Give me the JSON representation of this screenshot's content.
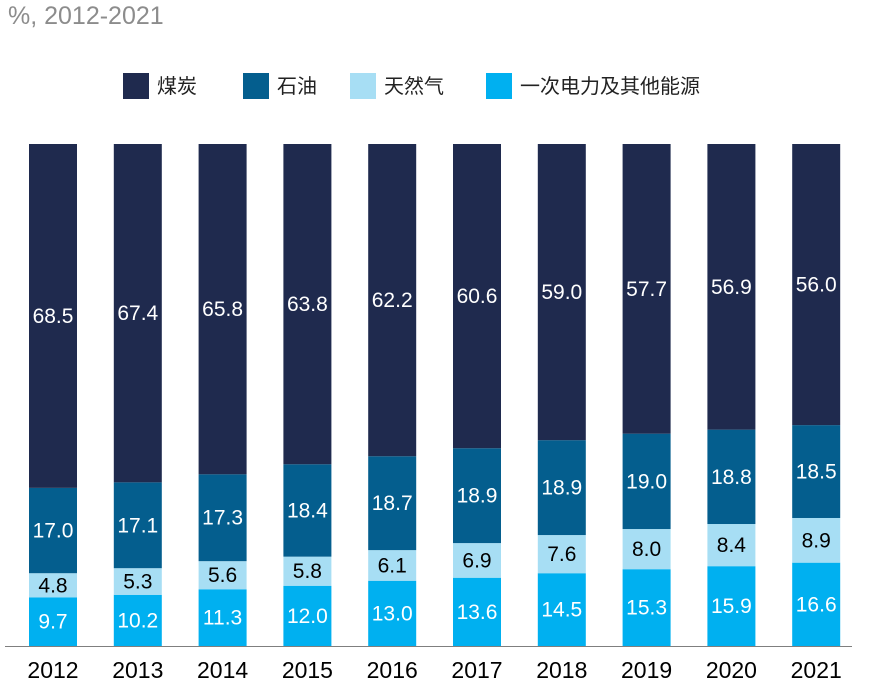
{
  "subtitle": "%, 2012-2021",
  "chart_data": {
    "type": "bar",
    "stacked": true,
    "categories": [
      "2012",
      "2013",
      "2014",
      "2015",
      "2016",
      "2017",
      "2018",
      "2019",
      "2020",
      "2021"
    ],
    "series": [
      {
        "name": "一次电力及其他能源",
        "color": "#00b0f0",
        "label_color": "#ffffff",
        "values": [
          9.7,
          10.2,
          11.3,
          12.0,
          13.0,
          13.6,
          14.5,
          15.3,
          15.9,
          16.6
        ]
      },
      {
        "name": "天然气",
        "color": "#a7def4",
        "label_color": "#000000",
        "values": [
          4.8,
          5.3,
          5.6,
          5.8,
          6.1,
          6.9,
          7.6,
          8.0,
          8.4,
          8.9
        ]
      },
      {
        "name": "石油",
        "color": "#045e8e",
        "label_color": "#ffffff",
        "values": [
          17.0,
          17.1,
          17.3,
          18.4,
          18.7,
          18.9,
          18.9,
          19.0,
          18.8,
          18.5
        ]
      },
      {
        "name": "煤炭",
        "color": "#1f2a4e",
        "label_color": "#ffffff",
        "values": [
          68.5,
          67.4,
          65.8,
          63.8,
          62.2,
          60.6,
          59.0,
          57.7,
          56.9,
          56.0
        ]
      }
    ],
    "legend_order": [
      "煤炭",
      "石油",
      "天然气",
      "一次电力及其他能源"
    ],
    "legend_position": "top",
    "ylim": [
      0,
      100
    ],
    "grid": false
  }
}
